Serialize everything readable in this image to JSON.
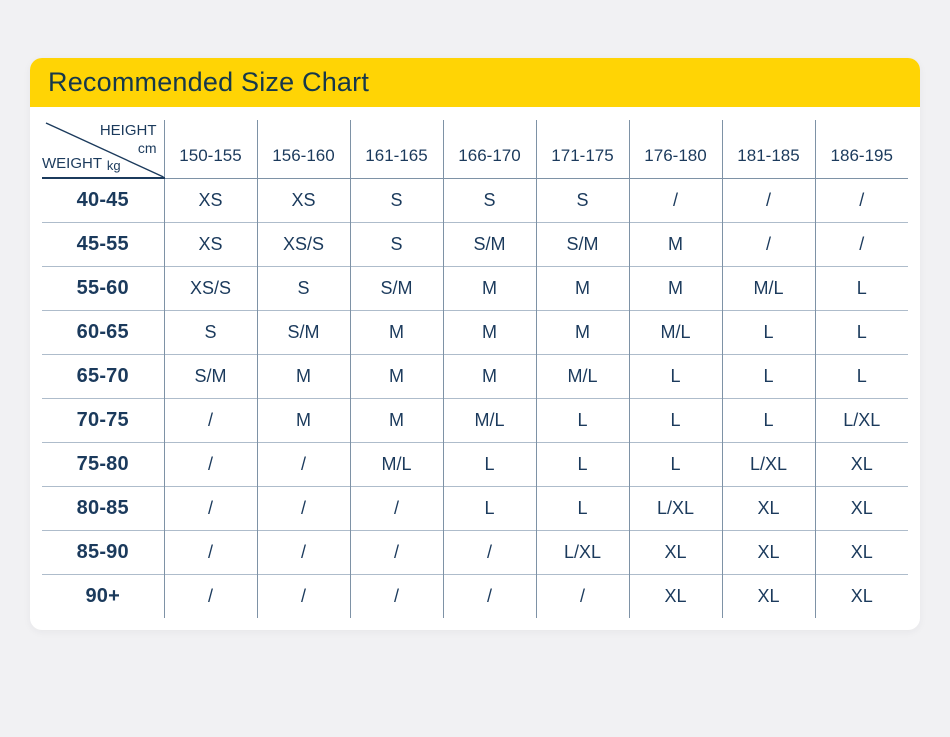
{
  "chart_data": {
    "type": "table",
    "title": "Recommended Size Chart",
    "col_axis": {
      "label": "HEIGHT",
      "unit": "cm"
    },
    "row_axis": {
      "label": "WEIGHT",
      "unit": "kg"
    },
    "columns": [
      "150-155",
      "156-160",
      "161-165",
      "166-170",
      "171-175",
      "176-180",
      "181-185",
      "186-195"
    ],
    "rows": [
      {
        "weight": "40-45",
        "sizes": [
          "XS",
          "XS",
          "S",
          "S",
          "S",
          "/",
          "/",
          "/"
        ]
      },
      {
        "weight": "45-55",
        "sizes": [
          "XS",
          "XS/S",
          "S",
          "S/M",
          "S/M",
          "M",
          "/",
          "/"
        ]
      },
      {
        "weight": "55-60",
        "sizes": [
          "XS/S",
          "S",
          "S/M",
          "M",
          "M",
          "M",
          "M/L",
          "L"
        ]
      },
      {
        "weight": "60-65",
        "sizes": [
          "S",
          "S/M",
          "M",
          "M",
          "M",
          "M/L",
          "L",
          "L"
        ]
      },
      {
        "weight": "65-70",
        "sizes": [
          "S/M",
          "M",
          "M",
          "M",
          "M/L",
          "L",
          "L",
          "L"
        ]
      },
      {
        "weight": "70-75",
        "sizes": [
          "/",
          "M",
          "M",
          "M/L",
          "L",
          "L",
          "L",
          "L/XL"
        ]
      },
      {
        "weight": "75-80",
        "sizes": [
          "/",
          "/",
          "M/L",
          "L",
          "L",
          "L",
          "L/XL",
          "XL"
        ]
      },
      {
        "weight": "80-85",
        "sizes": [
          "/",
          "/",
          "/",
          "L",
          "L",
          "L/XL",
          "XL",
          "XL"
        ]
      },
      {
        "weight": "85-90",
        "sizes": [
          "/",
          "/",
          "/",
          "/",
          "L/XL",
          "XL",
          "XL",
          "XL"
        ]
      },
      {
        "weight": "90+",
        "sizes": [
          "/",
          "/",
          "/",
          "/",
          "/",
          "XL",
          "XL",
          "XL"
        ]
      }
    ],
    "colors": {
      "header_bar": "#FFD405",
      "title_text": "#16384b",
      "table_text": "#1b3a5c",
      "grid_line": "#7e92a6",
      "row_separator": "#aebccb",
      "page_background": "#f1f1f3",
      "card_background": "#ffffff"
    }
  }
}
